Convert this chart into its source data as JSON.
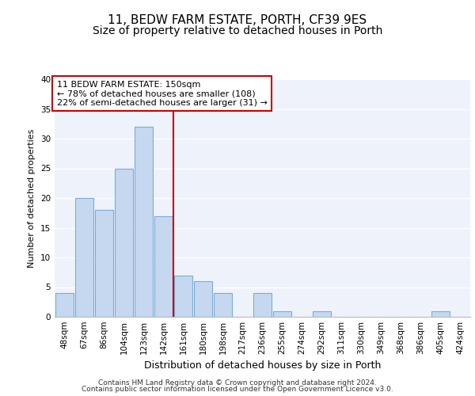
{
  "title1": "11, BEDW FARM ESTATE, PORTH, CF39 9ES",
  "title2": "Size of property relative to detached houses in Porth",
  "xlabel": "Distribution of detached houses by size in Porth",
  "ylabel": "Number of detached properties",
  "categories": [
    "48sqm",
    "67sqm",
    "86sqm",
    "104sqm",
    "123sqm",
    "142sqm",
    "161sqm",
    "180sqm",
    "198sqm",
    "217sqm",
    "236sqm",
    "255sqm",
    "274sqm",
    "292sqm",
    "311sqm",
    "330sqm",
    "349sqm",
    "368sqm",
    "386sqm",
    "405sqm",
    "424sqm"
  ],
  "values": [
    4,
    20,
    18,
    25,
    32,
    17,
    7,
    6,
    4,
    0,
    4,
    1,
    0,
    1,
    0,
    0,
    0,
    0,
    0,
    1,
    0
  ],
  "bar_color": "#c5d8f0",
  "bar_edge_color": "#7aadd4",
  "background_color": "#eef2fb",
  "grid_color": "#ffffff",
  "vline_x": 5.5,
  "vline_color": "#cc0000",
  "annotation_text": "11 BEDW FARM ESTATE: 150sqm\n← 78% of detached houses are smaller (108)\n22% of semi-detached houses are larger (31) →",
  "annotation_box_color": "#cc0000",
  "ylim": [
    0,
    40
  ],
  "yticks": [
    0,
    5,
    10,
    15,
    20,
    25,
    30,
    35,
    40
  ],
  "footer1": "Contains HM Land Registry data © Crown copyright and database right 2024.",
  "footer2": "Contains public sector information licensed under the Open Government Licence v3.0.",
  "title1_fontsize": 11,
  "title2_fontsize": 10,
  "xlabel_fontsize": 9,
  "ylabel_fontsize": 8,
  "tick_fontsize": 7.5,
  "annot_fontsize": 8,
  "footer_fontsize": 6.5
}
